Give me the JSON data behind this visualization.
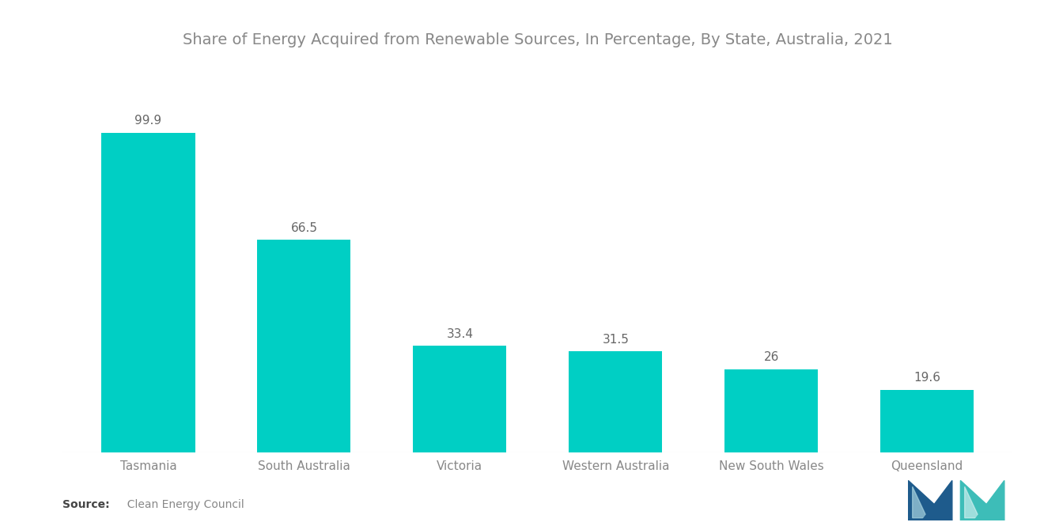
{
  "title": "Share of Energy Acquired from Renewable Sources, In Percentage, By State, Australia, 2021",
  "categories": [
    "Tasmania",
    "South Australia",
    "Victoria",
    "Western Australia",
    "New South Wales",
    "Queensland"
  ],
  "values": [
    99.9,
    66.5,
    33.4,
    31.5,
    26,
    19.6
  ],
  "bar_color": "#00CFC4",
  "background_color": "#FFFFFF",
  "title_fontsize": 14,
  "label_fontsize": 11,
  "value_fontsize": 11,
  "source_bold": "Source:",
  "source_text": "  Clean Energy Council",
  "ylim": [
    0,
    120
  ],
  "title_color": "#888888",
  "label_color": "#888888",
  "value_color": "#666666",
  "source_bold_color": "#444444",
  "source_color": "#888888",
  "logo_left_color": "#1e5b8c",
  "logo_right_color": "#3dbdb8"
}
